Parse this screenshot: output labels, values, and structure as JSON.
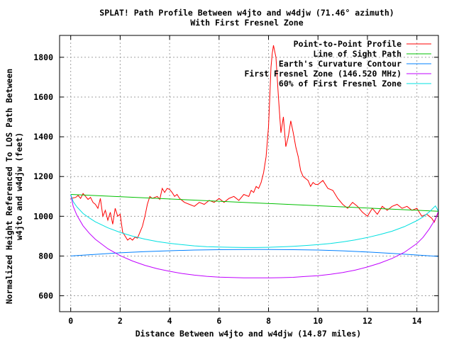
{
  "chart_data": {
    "type": "line",
    "title": "SPLAT! Path Profile Between w4jto and w4djw (71.46° azimuth)",
    "subtitle": "With First Fresnel Zone",
    "xlabel": "Distance Between w4jto and w4djw (14.87 miles)",
    "ylabel_line1": "Normalized Height Referenced To LOS Path Between",
    "ylabel_line2": "w4jto and w4djw (feet)",
    "xlim": [
      -0.45,
      14.87
    ],
    "ylim": [
      520,
      1910
    ],
    "x_ticks": [
      0,
      2,
      4,
      6,
      8,
      10,
      12,
      14
    ],
    "y_ticks": [
      600,
      800,
      1000,
      1200,
      1400,
      1600,
      1800
    ],
    "x_tick_labels": [
      "0",
      "2",
      "4",
      "6",
      "8",
      "10",
      "12",
      "14"
    ],
    "y_tick_labels": [
      "600",
      "800",
      "1000",
      "1200",
      "1400",
      "1600",
      "1800"
    ],
    "grid": true,
    "legend_position": "top-right",
    "series": [
      {
        "name": "Point-to-Point Profile",
        "color": "#ff0000",
        "x": [
          0,
          0.2,
          0.3,
          0.4,
          0.5,
          0.6,
          0.7,
          0.8,
          0.9,
          1.0,
          1.1,
          1.2,
          1.3,
          1.4,
          1.5,
          1.6,
          1.7,
          1.8,
          1.9,
          2.0,
          2.1,
          2.2,
          2.3,
          2.4,
          2.5,
          2.6,
          2.7,
          2.8,
          2.9,
          3.0,
          3.1,
          3.2,
          3.3,
          3.4,
          3.5,
          3.6,
          3.7,
          3.8,
          3.9,
          4.0,
          4.1,
          4.2,
          4.3,
          4.4,
          4.6,
          4.8,
          5.0,
          5.2,
          5.4,
          5.6,
          5.8,
          6.0,
          6.2,
          6.4,
          6.6,
          6.8,
          7.0,
          7.2,
          7.3,
          7.4,
          7.5,
          7.6,
          7.7,
          7.8,
          7.9,
          8.0,
          8.05,
          8.1,
          8.15,
          8.2,
          8.3,
          8.4,
          8.5,
          8.6,
          8.7,
          8.8,
          8.9,
          9.0,
          9.1,
          9.2,
          9.3,
          9.4,
          9.5,
          9.6,
          9.7,
          9.8,
          9.9,
          10.0,
          10.2,
          10.4,
          10.6,
          10.8,
          11.0,
          11.2,
          11.4,
          11.6,
          11.8,
          12.0,
          12.2,
          12.4,
          12.6,
          12.8,
          13.0,
          13.2,
          13.4,
          13.6,
          13.8,
          14.0,
          14.2,
          14.4,
          14.6,
          14.7,
          14.87
        ],
        "y": [
          1090,
          1095,
          1105,
          1090,
          1115,
          1100,
          1085,
          1095,
          1070,
          1060,
          1040,
          1090,
          1000,
          1030,
          980,
          1020,
          960,
          1040,
          1000,
          1010,
          920,
          900,
          880,
          890,
          880,
          895,
          890,
          920,
          950,
          1000,
          1060,
          1100,
          1090,
          1095,
          1100,
          1085,
          1140,
          1120,
          1140,
          1135,
          1120,
          1100,
          1110,
          1090,
          1070,
          1060,
          1050,
          1070,
          1060,
          1080,
          1070,
          1090,
          1070,
          1090,
          1100,
          1080,
          1110,
          1100,
          1130,
          1120,
          1150,
          1140,
          1170,
          1220,
          1300,
          1450,
          1600,
          1750,
          1820,
          1860,
          1800,
          1600,
          1420,
          1500,
          1350,
          1400,
          1480,
          1420,
          1350,
          1300,
          1230,
          1200,
          1190,
          1180,
          1150,
          1170,
          1160,
          1160,
          1180,
          1140,
          1130,
          1090,
          1060,
          1040,
          1070,
          1050,
          1020,
          1000,
          1040,
          1010,
          1050,
          1030,
          1050,
          1060,
          1040,
          1050,
          1030,
          1040,
          1000,
          1010,
          990,
          970,
          1020
        ]
      },
      {
        "name": "Line of Sight Path",
        "color": "#00c000",
        "x": [
          0,
          14.87
        ],
        "y": [
          1110,
          1025
        ]
      },
      {
        "name": "Earth's Curvature Contour",
        "color": "#0080ff",
        "x": [
          0,
          1,
          2,
          3,
          4,
          5,
          6,
          7,
          7.43,
          8,
          9,
          10,
          11,
          12,
          13,
          14,
          14.87
        ],
        "y": [
          800,
          808.5,
          816,
          822,
          826.5,
          830,
          832,
          833,
          833.2,
          833,
          832,
          830,
          826,
          820,
          813,
          805,
          798
        ]
      },
      {
        "name": "First Fresnel Zone (146.520 MHz)",
        "color": "#c000ff",
        "x": [
          0,
          0.1,
          0.25,
          0.5,
          0.75,
          1,
          1.5,
          2,
          2.5,
          3,
          3.5,
          4,
          4.5,
          5,
          5.5,
          6,
          6.5,
          7,
          7.5,
          8,
          8.5,
          9,
          9.5,
          10,
          10.5,
          11,
          11.5,
          12,
          12.5,
          13,
          13.5,
          14,
          14.25,
          14.5,
          14.75,
          14.87
        ],
        "y": [
          1110,
          1050,
          1005,
          952,
          915,
          884,
          837,
          802,
          775,
          753,
          736,
          723,
          712,
          704,
          698,
          694,
          692,
          690,
          690,
          690,
          691,
          693,
          697,
          701,
          708,
          717,
          729,
          745,
          764,
          788,
          819,
          863,
          894,
          936,
          986,
          1025
        ]
      },
      {
        "name": "60% of First Fresnel Zone",
        "color": "#00e0e0",
        "x": [
          0,
          0.1,
          0.25,
          0.5,
          0.75,
          1,
          1.5,
          2,
          2.5,
          3,
          3.5,
          4,
          4.5,
          5,
          5.5,
          6,
          6.5,
          7,
          7.5,
          8,
          8.5,
          9,
          9.5,
          10,
          10.5,
          11,
          11.5,
          12,
          12.5,
          13,
          13.5,
          14,
          14.25,
          14.5,
          14.75,
          14.87
        ],
        "y": [
          1110,
          1074,
          1047,
          1014,
          992,
          972,
          942,
          919,
          900,
          885,
          873,
          864,
          857,
          851,
          847,
          845,
          844,
          843,
          843,
          844,
          846,
          849,
          853,
          857,
          863,
          871,
          881,
          893,
          908,
          925,
          948,
          978,
          997,
          1022,
          1052,
          1025
        ]
      }
    ]
  }
}
